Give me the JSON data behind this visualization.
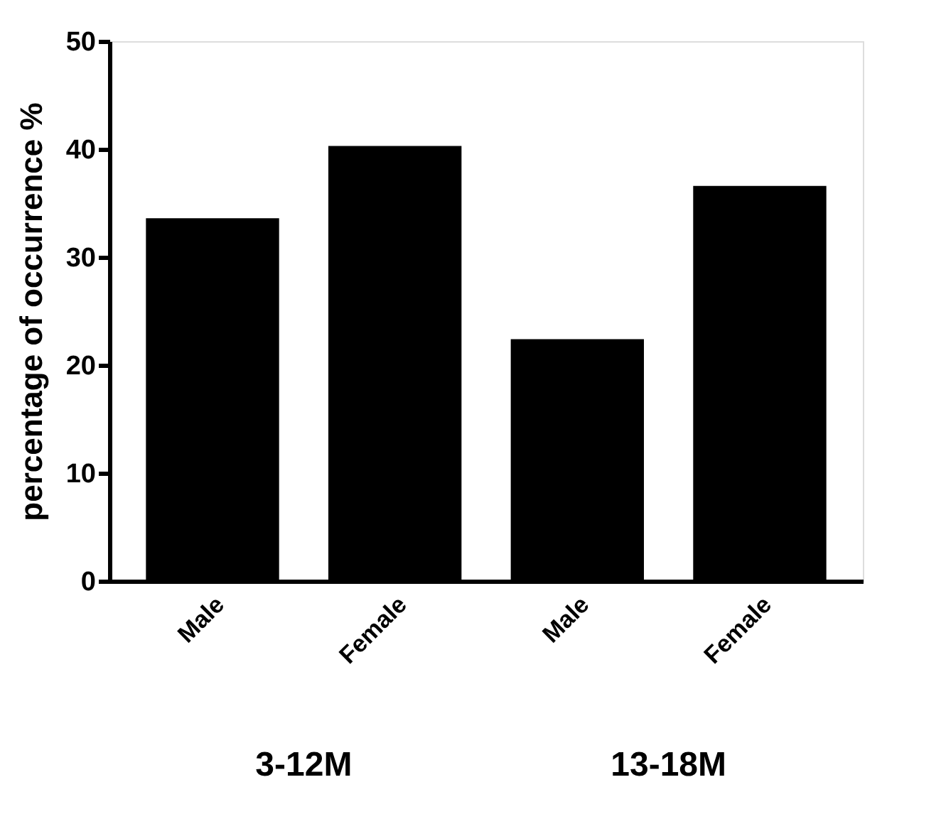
{
  "chart_data": {
    "type": "bar",
    "ylabel": "percentage of occurrence %",
    "categories": [
      "Male",
      "Female",
      "Male",
      "Female"
    ],
    "values": [
      33.6,
      40.3,
      22.4,
      36.6
    ],
    "color": "#000000",
    "ylim": [
      0,
      50
    ],
    "yticks": [
      0,
      10,
      20,
      30,
      40,
      50
    ],
    "grid": false,
    "annotations": [
      "3-12M",
      "13-18M"
    ]
  }
}
